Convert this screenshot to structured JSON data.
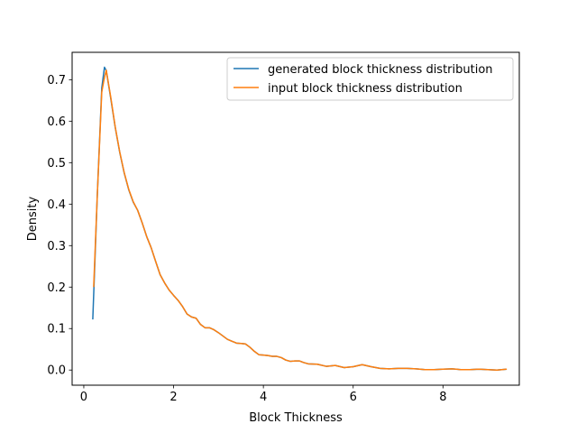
{
  "chart_data": {
    "type": "line",
    "title": "",
    "xlabel": "Block Thickness",
    "ylabel": "Density",
    "xlim": [
      -0.26,
      9.7
    ],
    "ylim": [
      -0.0365,
      0.766
    ],
    "x_ticks": [
      0,
      2,
      4,
      6,
      8
    ],
    "y_ticks": [
      0.0,
      0.1,
      0.2,
      0.3,
      0.4,
      0.5,
      0.6,
      0.7
    ],
    "x_tick_labels": [
      "0",
      "2",
      "4",
      "6",
      "8"
    ],
    "y_tick_labels": [
      "0.0",
      "0.1",
      "0.2",
      "0.3",
      "0.4",
      "0.5",
      "0.6",
      "0.7"
    ],
    "grid": false,
    "legend_position": "upper right",
    "series": [
      {
        "name": "generated block thickness distribution",
        "color": "#1f77b4",
        "x": [
          0.2,
          0.3,
          0.4,
          0.46,
          0.5,
          0.6,
          0.7,
          0.8,
          0.9,
          1.0,
          1.1,
          1.2,
          1.3,
          1.4,
          1.5,
          1.6,
          1.7,
          1.8,
          1.9,
          2.0,
          2.1,
          2.2,
          2.3,
          2.4,
          2.5,
          2.6,
          2.7,
          2.8,
          2.9,
          3.0,
          3.2,
          3.4,
          3.5,
          3.6,
          3.7,
          3.8,
          3.9,
          4.0,
          4.1,
          4.2,
          4.3,
          4.4,
          4.5,
          4.6,
          4.7,
          4.8,
          4.9,
          5.0,
          5.2,
          5.4,
          5.6,
          5.8,
          6.0,
          6.2,
          6.4,
          6.6,
          6.8,
          7.0,
          7.2,
          7.4,
          7.6,
          7.8,
          8.0,
          8.2,
          8.4,
          8.6,
          8.8,
          9.0,
          9.2,
          9.42
        ],
        "values": [
          0.122,
          0.42,
          0.68,
          0.73,
          0.722,
          0.655,
          0.585,
          0.525,
          0.475,
          0.435,
          0.405,
          0.385,
          0.355,
          0.322,
          0.295,
          0.262,
          0.23,
          0.21,
          0.193,
          0.18,
          0.168,
          0.153,
          0.135,
          0.128,
          0.125,
          0.11,
          0.102,
          0.102,
          0.097,
          0.09,
          0.074,
          0.065,
          0.064,
          0.063,
          0.055,
          0.045,
          0.037,
          0.036,
          0.035,
          0.033,
          0.033,
          0.03,
          0.024,
          0.021,
          0.022,
          0.022,
          0.018,
          0.015,
          0.014,
          0.009,
          0.011,
          0.006,
          0.008,
          0.013,
          0.008,
          0.004,
          0.003,
          0.004,
          0.004,
          0.003,
          0.001,
          0.001,
          0.002,
          0.003,
          0.001,
          0.001,
          0.002,
          0.001,
          0.0,
          0.002
        ]
      },
      {
        "name": "input block thickness distribution",
        "color": "#ff7f0e",
        "x": [
          0.22,
          0.3,
          0.4,
          0.45,
          0.5,
          0.6,
          0.7,
          0.8,
          0.9,
          1.0,
          1.1,
          1.2,
          1.3,
          1.4,
          1.5,
          1.6,
          1.7,
          1.8,
          1.9,
          2.0,
          2.1,
          2.2,
          2.3,
          2.4,
          2.5,
          2.6,
          2.7,
          2.8,
          2.9,
          3.0,
          3.2,
          3.4,
          3.5,
          3.6,
          3.7,
          3.8,
          3.9,
          4.0,
          4.1,
          4.2,
          4.3,
          4.4,
          4.5,
          4.6,
          4.7,
          4.8,
          4.9,
          5.0,
          5.2,
          5.4,
          5.6,
          5.8,
          6.0,
          6.2,
          6.4,
          6.6,
          6.8,
          7.0,
          7.2,
          7.4,
          7.6,
          7.8,
          8.0,
          8.2,
          8.4,
          8.6,
          8.8,
          9.0,
          9.2,
          9.42
        ],
        "values": [
          0.2,
          0.42,
          0.67,
          0.7,
          0.723,
          0.658,
          0.586,
          0.526,
          0.476,
          0.436,
          0.406,
          0.385,
          0.355,
          0.322,
          0.295,
          0.262,
          0.23,
          0.21,
          0.193,
          0.18,
          0.168,
          0.153,
          0.135,
          0.128,
          0.125,
          0.11,
          0.102,
          0.102,
          0.097,
          0.09,
          0.074,
          0.065,
          0.064,
          0.063,
          0.055,
          0.045,
          0.037,
          0.036,
          0.035,
          0.033,
          0.033,
          0.03,
          0.024,
          0.021,
          0.022,
          0.022,
          0.018,
          0.015,
          0.014,
          0.009,
          0.011,
          0.006,
          0.008,
          0.013,
          0.008,
          0.004,
          0.003,
          0.004,
          0.004,
          0.003,
          0.001,
          0.001,
          0.002,
          0.003,
          0.001,
          0.001,
          0.002,
          0.001,
          0.0,
          0.002
        ]
      }
    ]
  }
}
